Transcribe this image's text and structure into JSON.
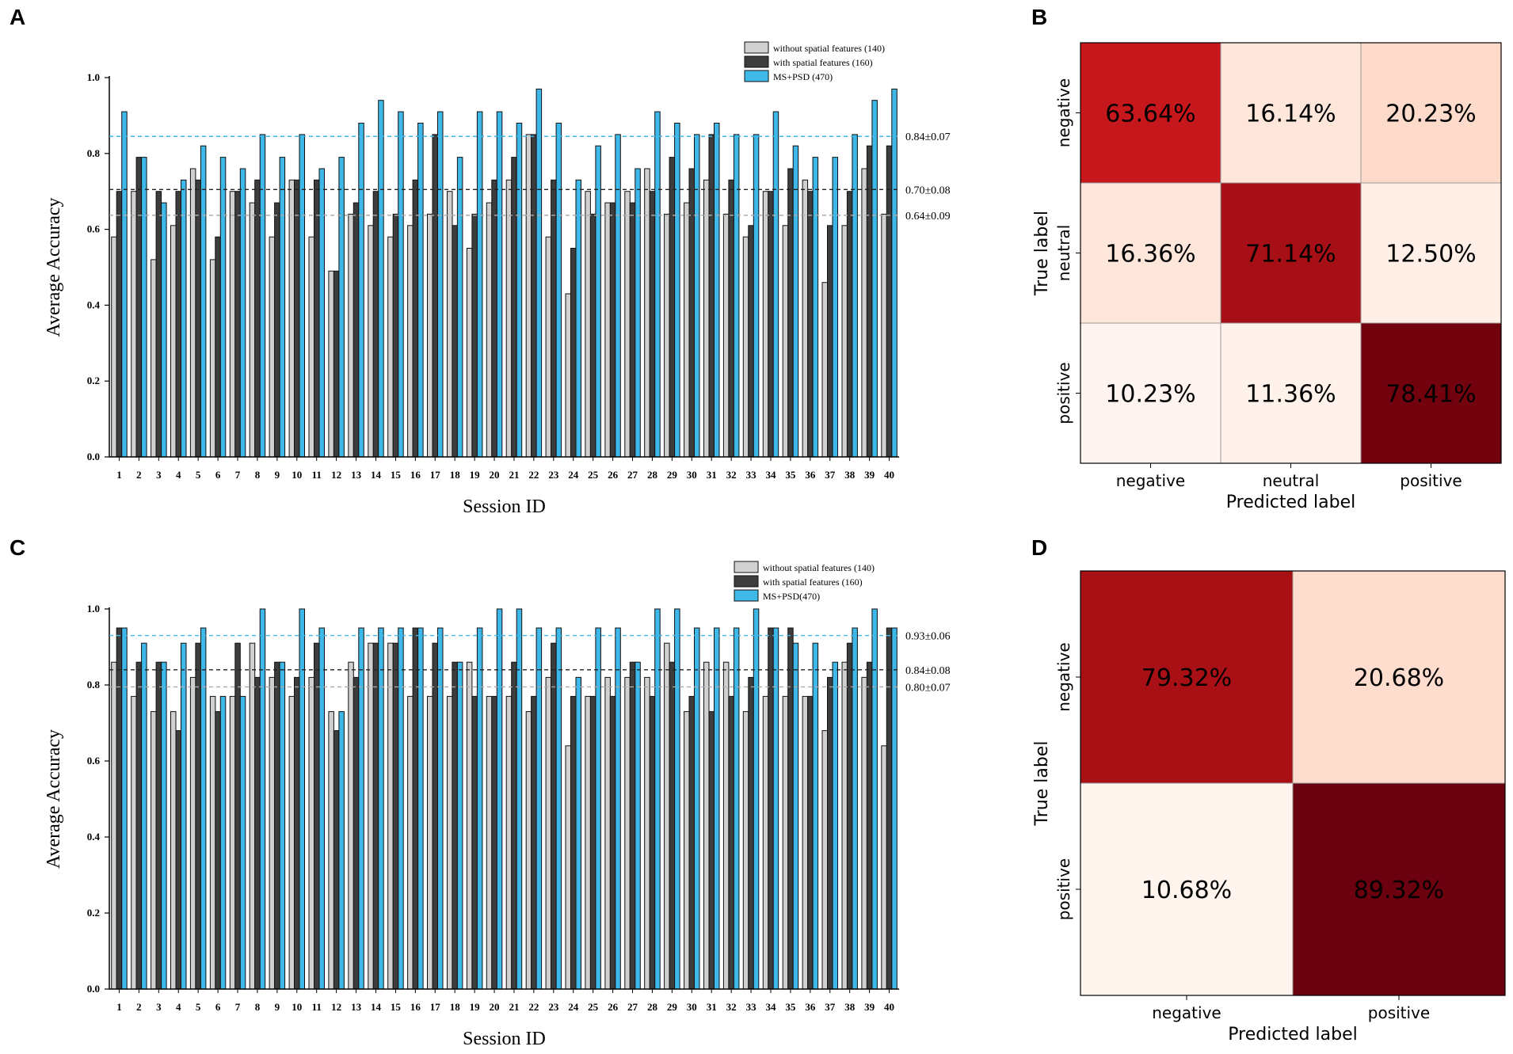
{
  "panels": {
    "A": "A",
    "B": "B",
    "C": "C",
    "D": "D"
  },
  "colors": {
    "without": "#d0d0d0",
    "with": "#3d3d3d",
    "mspsd": "#3db8e8",
    "line_mspsd": "#3db8e8",
    "line_with": "#222222",
    "line_without": "#aaaaaa"
  },
  "chart_data": [
    {
      "type": "bar",
      "id": "A",
      "xlabel": "Session ID",
      "ylabel": "Average Accuracy",
      "ylim": [
        0.0,
        1.0
      ],
      "yticks": [
        "0.0",
        "0.2",
        "0.4",
        "0.6",
        "0.8",
        "1.0"
      ],
      "categories": [
        "1",
        "2",
        "3",
        "4",
        "5",
        "6",
        "7",
        "8",
        "9",
        "10",
        "11",
        "12",
        "13",
        "14",
        "15",
        "16",
        "17",
        "18",
        "19",
        "20",
        "21",
        "22",
        "23",
        "24",
        "25",
        "26",
        "27",
        "28",
        "29",
        "30",
        "31",
        "32",
        "33",
        "34",
        "35",
        "36",
        "37",
        "38",
        "39",
        "40"
      ],
      "series": [
        {
          "name": "without spatial features (140)",
          "values": [
            0.58,
            0.7,
            0.52,
            0.61,
            0.76,
            0.52,
            0.7,
            0.67,
            0.58,
            0.73,
            0.58,
            0.49,
            0.64,
            0.61,
            0.58,
            0.61,
            0.64,
            0.7,
            0.55,
            0.67,
            0.73,
            0.85,
            0.58,
            0.43,
            0.7,
            0.67,
            0.7,
            0.76,
            0.64,
            0.67,
            0.73,
            0.64,
            0.58,
            0.7,
            0.61,
            0.73,
            0.46,
            0.61,
            0.76,
            0.64
          ]
        },
        {
          "name": "with spatial features (160)",
          "values": [
            0.7,
            0.79,
            0.7,
            0.7,
            0.73,
            0.58,
            0.7,
            0.73,
            0.67,
            0.73,
            0.73,
            0.49,
            0.67,
            0.7,
            0.64,
            0.73,
            0.85,
            0.61,
            0.64,
            0.73,
            0.79,
            0.85,
            0.73,
            0.55,
            0.64,
            0.67,
            0.67,
            0.7,
            0.79,
            0.76,
            0.85,
            0.73,
            0.61,
            0.7,
            0.76,
            0.7,
            0.61,
            0.7,
            0.82,
            0.82
          ]
        },
        {
          "name": "MS+PSD (470)",
          "values": [
            0.91,
            0.79,
            0.67,
            0.73,
            0.82,
            0.79,
            0.76,
            0.85,
            0.79,
            0.85,
            0.76,
            0.79,
            0.88,
            0.94,
            0.91,
            0.88,
            0.91,
            0.79,
            0.91,
            0.91,
            0.88,
            0.97,
            0.88,
            0.73,
            0.82,
            0.85,
            0.76,
            0.91,
            0.88,
            0.85,
            0.88,
            0.85,
            0.85,
            0.91,
            0.82,
            0.79,
            0.79,
            0.85,
            0.94,
            0.97
          ]
        }
      ],
      "reference_lines": [
        {
          "value": 0.845,
          "label": "0.84±0.07",
          "series": "MS+PSD (470)"
        },
        {
          "value": 0.705,
          "label": "0.70±0.08",
          "series": "with spatial features (160)"
        },
        {
          "value": 0.637,
          "label": "0.64±0.09",
          "series": "without spatial features (140)"
        }
      ],
      "legend": "top-right"
    },
    {
      "type": "heatmap",
      "id": "B",
      "xlabel": "Predicted label",
      "ylabel": "True label",
      "x_categories": [
        "negative",
        "neutral",
        "positive"
      ],
      "y_categories": [
        "negative",
        "neutral",
        "positive"
      ],
      "values": [
        [
          63.64,
          16.14,
          20.23
        ],
        [
          16.36,
          71.14,
          12.5
        ],
        [
          10.23,
          11.36,
          78.41
        ]
      ],
      "labels": [
        [
          "63.64%",
          "16.14%",
          "20.23%"
        ],
        [
          "16.36%",
          "71.14%",
          "12.50%"
        ],
        [
          "10.23%",
          "11.36%",
          "78.41%"
        ]
      ]
    },
    {
      "type": "bar",
      "id": "C",
      "xlabel": "Session ID",
      "ylabel": "Average Accuracy",
      "ylim": [
        0.0,
        1.0
      ],
      "yticks": [
        "0.0",
        "0.2",
        "0.4",
        "0.6",
        "0.8",
        "1.0"
      ],
      "categories": [
        "1",
        "2",
        "3",
        "4",
        "5",
        "6",
        "7",
        "8",
        "9",
        "10",
        "11",
        "12",
        "13",
        "14",
        "15",
        "16",
        "17",
        "18",
        "19",
        "20",
        "21",
        "22",
        "23",
        "24",
        "25",
        "26",
        "27",
        "28",
        "29",
        "30",
        "31",
        "32",
        "33",
        "34",
        "35",
        "36",
        "37",
        "38",
        "39",
        "40"
      ],
      "series": [
        {
          "name": "without spatial features (140)",
          "values": [
            0.86,
            0.77,
            0.73,
            0.73,
            0.82,
            0.77,
            0.77,
            0.91,
            0.82,
            0.77,
            0.82,
            0.73,
            0.86,
            0.91,
            0.91,
            0.77,
            0.77,
            0.77,
            0.86,
            0.77,
            0.77,
            0.73,
            0.82,
            0.64,
            0.77,
            0.82,
            0.82,
            0.82,
            0.91,
            0.73,
            0.86,
            0.86,
            0.73,
            0.77,
            0.77,
            0.77,
            0.68,
            0.86,
            0.82,
            0.64
          ]
        },
        {
          "name": "with spatial features (160)",
          "values": [
            0.95,
            0.86,
            0.86,
            0.68,
            0.91,
            0.73,
            0.91,
            0.82,
            0.86,
            0.82,
            0.91,
            0.68,
            0.82,
            0.91,
            0.91,
            0.95,
            0.91,
            0.86,
            0.77,
            0.77,
            0.86,
            0.77,
            0.91,
            0.77,
            0.77,
            0.77,
            0.86,
            0.77,
            0.86,
            0.77,
            0.73,
            0.77,
            0.82,
            0.95,
            0.95,
            0.77,
            0.82,
            0.91,
            0.86,
            0.95
          ]
        },
        {
          "name": "MS+PSD(470)",
          "values": [
            0.95,
            0.91,
            0.86,
            0.91,
            0.95,
            0.77,
            0.77,
            1.0,
            0.86,
            1.0,
            0.95,
            0.73,
            0.95,
            0.95,
            0.95,
            0.95,
            0.95,
            0.86,
            0.95,
            1.0,
            1.0,
            0.95,
            0.95,
            0.82,
            0.95,
            0.95,
            0.86,
            1.0,
            1.0,
            0.95,
            0.95,
            0.95,
            1.0,
            0.95,
            0.91,
            0.91,
            0.86,
            0.95,
            1.0,
            0.95
          ]
        }
      ],
      "reference_lines": [
        {
          "value": 0.93,
          "label": "0.93±0.06",
          "series": "MS+PSD(470)"
        },
        {
          "value": 0.84,
          "label": "0.84±0.08",
          "series": "with spatial features (160)"
        },
        {
          "value": 0.795,
          "label": "0.80±0.07",
          "series": "without spatial features (140)"
        }
      ],
      "legend": "top-right"
    },
    {
      "type": "heatmap",
      "id": "D",
      "xlabel": "Predicted label",
      "ylabel": "True label",
      "x_categories": [
        "negative",
        "positive"
      ],
      "y_categories": [
        "negative",
        "positive"
      ],
      "values": [
        [
          79.32,
          20.68
        ],
        [
          10.68,
          89.32
        ]
      ],
      "labels": [
        [
          "79.32%",
          "20.68%"
        ],
        [
          "10.68%",
          "89.32%"
        ]
      ]
    }
  ]
}
